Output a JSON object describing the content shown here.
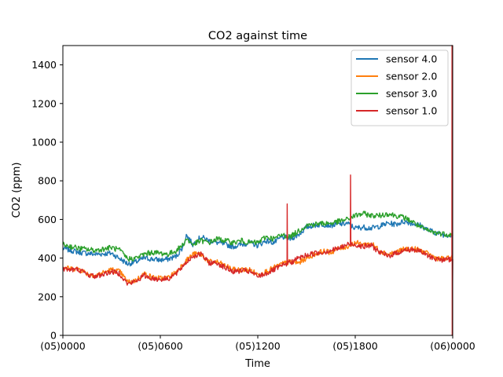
{
  "chart_data": {
    "type": "line",
    "title": "CO2 against  time",
    "xlabel": "Time",
    "ylabel": "CO2 (ppm)",
    "xlim": [
      0,
      24
    ],
    "ylim": [
      0,
      1500
    ],
    "xticks": [
      0,
      6,
      12,
      18,
      24
    ],
    "xtick_labels": [
      "(05)0000",
      "(05)0600",
      "(05)1200",
      "(05)1800",
      "(06)0000"
    ],
    "yticks": [
      0,
      200,
      400,
      600,
      800,
      1000,
      1200,
      1400
    ],
    "ytick_labels": [
      "0",
      "200",
      "400",
      "600",
      "800",
      "1000",
      "1200",
      "1400"
    ],
    "x_unit": "hours since (05)0000",
    "grid": false,
    "legend_position": "top-right",
    "series": [
      {
        "name": "sensor 4.0",
        "color": "#1f77b4",
        "x": [
          0,
          1,
          2,
          3,
          4,
          4.5,
          5,
          5.5,
          6,
          6.5,
          7,
          7.4,
          7.6,
          8,
          8.5,
          9,
          9.5,
          10,
          10.5,
          11,
          11.5,
          12,
          12.5,
          13,
          13.5,
          14,
          14.5,
          15,
          15.5,
          16,
          16.5,
          17,
          17.5,
          18,
          18.5,
          19,
          19.5,
          20,
          20.5,
          21,
          21.5,
          22,
          22.5,
          23,
          23.5,
          24
        ],
        "values": [
          450,
          430,
          420,
          425,
          370,
          380,
          400,
          395,
          390,
          395,
          410,
          460,
          520,
          470,
          510,
          490,
          480,
          470,
          460,
          470,
          480,
          465,
          490,
          480,
          510,
          500,
          520,
          560,
          570,
          575,
          570,
          575,
          580,
          555,
          560,
          555,
          565,
          580,
          575,
          590,
          580,
          570,
          545,
          530,
          520,
          520
        ]
      },
      {
        "name": "sensor 2.0",
        "color": "#ff7f0e",
        "x": [
          0,
          0.5,
          1,
          1.5,
          2,
          3,
          3.5,
          4,
          4.5,
          5,
          5.5,
          6,
          6.5,
          7,
          7.5,
          8,
          8.5,
          9,
          9.5,
          10,
          10.5,
          11,
          11.5,
          12,
          12.5,
          13,
          13.5,
          14,
          14.5,
          15,
          15.5,
          16,
          16.5,
          17,
          17.5,
          18,
          18.5,
          19,
          19.5,
          20,
          20.5,
          21,
          21.5,
          22,
          22.5,
          23,
          23.5,
          24
        ],
        "values": [
          350,
          345,
          345,
          320,
          310,
          340,
          330,
          275,
          285,
          320,
          300,
          295,
          300,
          330,
          380,
          420,
          420,
          380,
          380,
          360,
          340,
          340,
          340,
          315,
          330,
          350,
          370,
          380,
          375,
          400,
          420,
          435,
          430,
          450,
          460,
          480,
          470,
          475,
          440,
          420,
          430,
          445,
          450,
          440,
          420,
          400,
          395,
          400
        ]
      },
      {
        "name": "sensor 3.0",
        "color": "#2ca02c",
        "x": [
          0,
          1,
          2,
          3,
          3.5,
          4,
          4.5,
          5,
          5.5,
          6,
          6.5,
          7,
          7.4,
          7.6,
          8,
          8.5,
          9,
          9.5,
          10,
          10.5,
          11,
          11.5,
          12,
          12.5,
          13,
          13.5,
          14,
          14.5,
          15,
          15.5,
          16,
          16.5,
          17,
          17.5,
          18,
          18.5,
          19,
          19.5,
          20,
          20.5,
          21,
          21.5,
          22,
          22.5,
          23,
          23.5,
          24
        ],
        "values": [
          470,
          450,
          440,
          455,
          440,
          395,
          400,
          420,
          430,
          425,
          420,
          440,
          470,
          500,
          470,
          490,
          480,
          500,
          490,
          480,
          490,
          480,
          480,
          510,
          500,
          520,
          510,
          540,
          570,
          575,
          580,
          580,
          590,
          600,
          620,
          630,
          620,
          620,
          630,
          620,
          610,
          590,
          560,
          540,
          530,
          525,
          520
        ]
      },
      {
        "name": "sensor 1.0",
        "color": "#d62728",
        "x": [
          0,
          0.5,
          1,
          1.5,
          2,
          3,
          3.5,
          4,
          4.5,
          5,
          5.5,
          6,
          6.5,
          7,
          7.5,
          8,
          8.5,
          9,
          9.5,
          10,
          10.5,
          11,
          11.5,
          12,
          12.5,
          13,
          13.5,
          13.8,
          13.81,
          13.83,
          14,
          14.5,
          15,
          15.5,
          16,
          16.5,
          17,
          17.5,
          17.7,
          17.71,
          17.73,
          18,
          18.5,
          19,
          19.5,
          20,
          20.5,
          21,
          21.5,
          22,
          22.5,
          23,
          23.5,
          23.95,
          23.96,
          23.97,
          24
        ],
        "values": [
          345,
          340,
          340,
          315,
          305,
          330,
          320,
          265,
          280,
          310,
          295,
          290,
          295,
          320,
          370,
          410,
          420,
          375,
          375,
          350,
          330,
          335,
          330,
          305,
          320,
          340,
          360,
          370,
          680,
          380,
          375,
          400,
          415,
          425,
          430,
          440,
          450,
          470,
          470,
          830,
          470,
          470,
          460,
          465,
          430,
          410,
          425,
          440,
          445,
          435,
          410,
          395,
          390,
          395,
          1500,
          0,
          395
        ]
      }
    ]
  }
}
